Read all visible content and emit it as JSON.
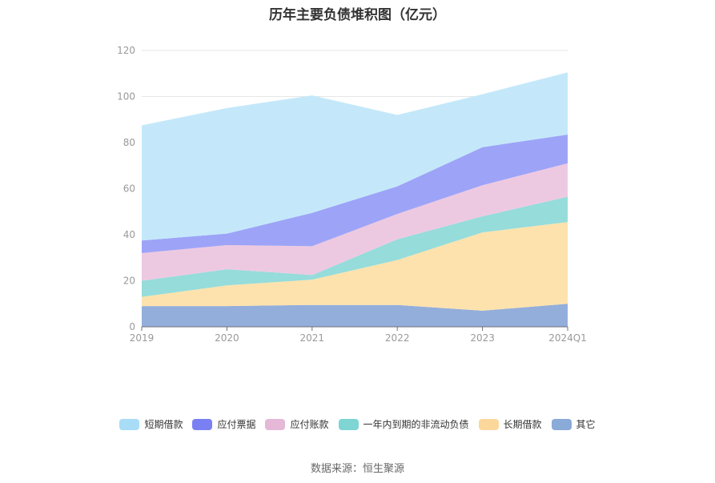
{
  "title": "历年主要负债堆积图（亿元）",
  "source": "数据来源：恒生聚源",
  "chart_data": {
    "type": "area",
    "stacked": true,
    "title": "历年主要负债堆积图（亿元）",
    "categories": [
      "2019",
      "2020",
      "2021",
      "2022",
      "2023",
      "2024Q1"
    ],
    "ylim": [
      0,
      120
    ],
    "yticks": [
      "0",
      "20",
      "40",
      "60",
      "80",
      "100",
      "120"
    ],
    "grid": true,
    "legend_position": "bottom",
    "series": [
      {
        "name": "其它",
        "color": "#93aedb",
        "values": [
          9,
          9,
          9.5,
          9.5,
          7,
          10
        ]
      },
      {
        "name": "长期借款",
        "color": "#fde2ad",
        "values": [
          4,
          9,
          11,
          19.5,
          34,
          35.5
        ]
      },
      {
        "name": "一年内到期的非流动负债",
        "color": "#95dcdb",
        "values": [
          7,
          7,
          2,
          9,
          7,
          11
        ]
      },
      {
        "name": "应付账款",
        "color": "#edc9e1",
        "values": [
          12,
          10.5,
          12.5,
          11,
          13.5,
          14.5
        ]
      },
      {
        "name": "应付票据",
        "color": "#9da4f7",
        "values": [
          5.5,
          5,
          14.5,
          12,
          16.5,
          12.5
        ]
      },
      {
        "name": "短期借款",
        "color": "#c4e8fa",
        "values": [
          50,
          54.5,
          51,
          31,
          23,
          27
        ]
      }
    ],
    "legend_order": [
      "短期借款",
      "应付票据",
      "应付账款",
      "一年内到期的非流动负债",
      "长期借款",
      "其它"
    ],
    "legend_colors": {
      "短期借款": "#a8dcf7",
      "应付票据": "#7a80f2",
      "应付账款": "#e5b8d8",
      "一年内到期的非流动负债": "#7fd4d4",
      "长期借款": "#fcd79c",
      "其它": "#8aaad8"
    }
  }
}
